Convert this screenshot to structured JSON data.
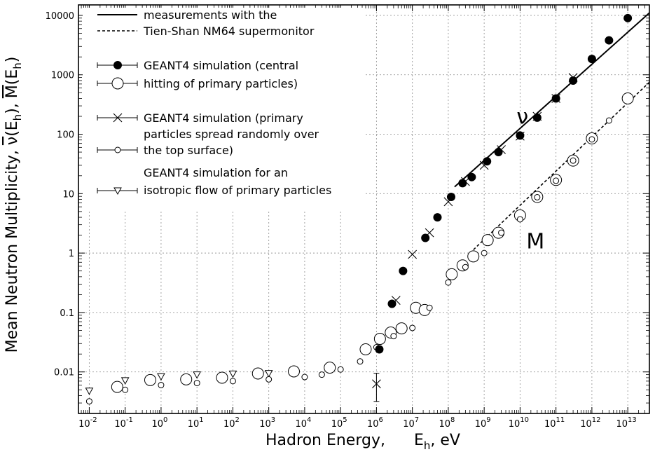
{
  "chart_data": {
    "type": "scatter",
    "x_scale": "log",
    "y_scale": "log",
    "xlim": [
      0.005,
      40000000000000
    ],
    "ylim": [
      0.002,
      15000
    ],
    "grid": true,
    "xlabel": "Hadron Energy,    E_h,  eV",
    "xlabel_parts": [
      "Hadron Energy,",
      "E",
      "h",
      ",  eV"
    ],
    "ylabel_parts": [
      "Mean Neutron Multiplicity,  ",
      "ν",
      "(E",
      "h",
      "),  ",
      "M",
      "(E",
      "h",
      ")"
    ],
    "x_ticks": [
      {
        "value": 0.01,
        "base": "10",
        "exp": "-2"
      },
      {
        "value": 0.1,
        "base": "10",
        "exp": "-1"
      },
      {
        "value": 1,
        "base": "10",
        "exp": "0"
      },
      {
        "value": 10,
        "base": "10",
        "exp": "1"
      },
      {
        "value": 100,
        "base": "10",
        "exp": "2"
      },
      {
        "value": 1000,
        "base": "10",
        "exp": "3"
      },
      {
        "value": 10000,
        "base": "10",
        "exp": "4"
      },
      {
        "value": 100000,
        "base": "10",
        "exp": "5"
      },
      {
        "value": 1000000,
        "base": "10",
        "exp": "6"
      },
      {
        "value": 10000000,
        "base": "10",
        "exp": "7"
      },
      {
        "value": 100000000,
        "base": "10",
        "exp": "8"
      },
      {
        "value": 1000000000,
        "base": "10",
        "exp": "9"
      },
      {
        "value": 10000000000,
        "base": "10",
        "exp": "10"
      },
      {
        "value": 100000000000,
        "base": "10",
        "exp": "11"
      },
      {
        "value": 1000000000000,
        "base": "10",
        "exp": "12"
      },
      {
        "value": 10000000000000,
        "base": "10",
        "exp": "13"
      }
    ],
    "y_ticks": [
      {
        "value": 0.01,
        "label": "0.01"
      },
      {
        "value": 0.1,
        "label": "0.1"
      },
      {
        "value": 1,
        "label": "1"
      },
      {
        "value": 10,
        "label": "10"
      },
      {
        "value": 100,
        "label": "100"
      },
      {
        "value": 1000,
        "label": "1000"
      },
      {
        "value": 10000,
        "label": "10000"
      }
    ],
    "curve_labels": [
      {
        "text": "ν",
        "x": 8000000000,
        "y": 150
      },
      {
        "text": "M",
        "x": 15000000000,
        "y": 1.2
      }
    ],
    "legend": {
      "position": "top-left",
      "entries": [
        {
          "marker": "solid-line",
          "lines": [
            "measurements with the"
          ]
        },
        {
          "marker": "dashed-line",
          "lines": [
            "Tien-Shan NM64 supermonitor"
          ]
        },
        {
          "marker": "big-filled-circle",
          "lines": [
            "GEANT4 simulation (central",
            "hitting of primary particles)"
          ]
        },
        {
          "marker": "cross",
          "lines": [
            "GEANT4 simulation (primary",
            "particles spread randomly over",
            "the top surface)"
          ]
        },
        {
          "marker": "triangle-down",
          "lines": [
            "GEANT4 simulation for an",
            "isotropic flow of primary particles"
          ]
        }
      ]
    },
    "series": [
      {
        "marker": "solid-line",
        "role": "nu measurement",
        "x": [
          150000000,
          40000000000000
        ],
        "y": [
          13,
          11000
        ]
      },
      {
        "marker": "dashed-line",
        "role": "M measurement",
        "x": [
          400000000,
          40000000000000
        ],
        "y": [
          1.0,
          750
        ]
      },
      {
        "marker": "filled-circle",
        "role": "nu central hitting",
        "x": [
          1200000,
          2700000,
          5500000,
          23000000,
          50000000,
          120000000,
          250000000,
          450000000,
          1200000000,
          2500000000,
          10000000000,
          30000000000,
          100000000000,
          300000000000,
          1000000000000,
          3000000000000,
          10000000000000
        ],
        "y": [
          0.024,
          0.14,
          0.5,
          1.8,
          4.0,
          8.8,
          15,
          19,
          35,
          50,
          95,
          190,
          400,
          800,
          1850,
          3800,
          9000
        ]
      },
      {
        "marker": "cross",
        "role": "nu random spread",
        "x": [
          1000000,
          3500000,
          10000000,
          30000000,
          100000000,
          300000000,
          1000000000,
          3000000000,
          10000000000,
          30000000000,
          100000000000,
          300000000000
        ],
        "y": [
          0.0063,
          0.16,
          0.95,
          2.2,
          7.3,
          16,
          30,
          55,
          93,
          200,
          400,
          900
        ],
        "y_err": [
          [
            0.0032,
            0.0095
          ],
          null,
          null,
          null,
          null,
          null,
          null,
          null,
          null,
          null,
          null,
          null
        ]
      },
      {
        "marker": "big-open-circle",
        "role": "M central hitting",
        "x": [
          0.06,
          0.5,
          5,
          50,
          500,
          5000,
          50000,
          500000,
          1250000,
          2500000,
          5000000,
          12500000,
          22000000,
          125000000,
          250000000,
          500000000,
          1250000000,
          2500000000,
          10000000000,
          30000000000,
          100000000000,
          300000000000,
          1000000000000,
          10000000000000
        ],
        "y": [
          0.0056,
          0.0073,
          0.0075,
          0.008,
          0.0094,
          0.0102,
          0.0118,
          0.024,
          0.036,
          0.046,
          0.054,
          0.12,
          0.11,
          0.44,
          0.62,
          0.88,
          1.65,
          2.2,
          4.3,
          8.8,
          17,
          36,
          85,
          400
        ]
      },
      {
        "marker": "small-open-circle",
        "role": "M random spread",
        "x": [
          0.01,
          0.1,
          1,
          10,
          100,
          1000,
          10000,
          30000,
          100000,
          350000,
          1000000,
          3000000,
          10000000,
          30000000,
          100000000,
          300000000,
          1000000000,
          3000000000,
          10000000000,
          30000000000,
          100000000000,
          300000000000,
          1000000000000,
          3000000000000
        ],
        "y": [
          0.0032,
          0.005,
          0.006,
          0.0065,
          0.007,
          0.0075,
          0.0082,
          0.009,
          0.011,
          0.015,
          0.026,
          0.04,
          0.055,
          0.12,
          0.32,
          0.58,
          1.0,
          2.2,
          3.7,
          8.7,
          16.5,
          36,
          82,
          170
        ]
      },
      {
        "marker": "triangle-down",
        "role": "isotropic flow",
        "x": [
          0.01,
          0.1,
          1,
          10,
          100,
          1000
        ],
        "y": [
          0.0048,
          0.0072,
          0.0084,
          0.009,
          0.0093,
          0.0095
        ]
      }
    ]
  }
}
